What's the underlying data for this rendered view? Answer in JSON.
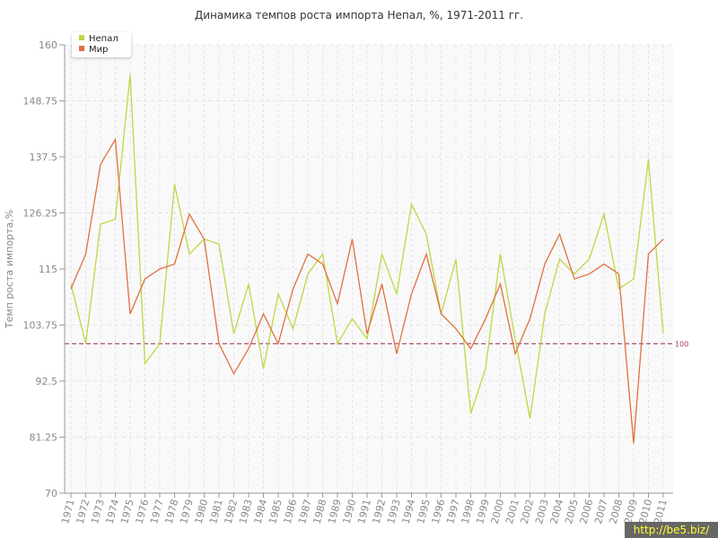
{
  "title": "Динамика темпов роста импорта Непал, %, 1971-2011 гг.",
  "watermark": "http://be5.biz/",
  "colors": {
    "nepal": "#bcd846",
    "world": "#e07040",
    "reference": "#a04060",
    "grid": "#e2e2e2",
    "plot_bg": "#f9f9f9"
  },
  "chart_data": {
    "type": "line",
    "title": "Динамика темпов роста импорта Непал, %, 1971-2011 гг.",
    "xlabel": "",
    "ylabel": "Темп роста импорта,%",
    "ylim": [
      70,
      160
    ],
    "yticks": [
      "70",
      "81.25",
      "92.5",
      "103.75",
      "115",
      "126.25",
      "137.5",
      "148.75",
      "160"
    ],
    "x": [
      "1971",
      "1972",
      "1973",
      "1974",
      "1975",
      "1976",
      "1977",
      "1978",
      "1979",
      "1980",
      "1981",
      "1982",
      "1983",
      "1984",
      "1985",
      "1986",
      "1987",
      "1988",
      "1989",
      "1990",
      "1991",
      "1992",
      "1993",
      "1994",
      "1995",
      "1996",
      "1997",
      "1998",
      "1999",
      "2000",
      "2001",
      "2002",
      "2003",
      "2004",
      "2005",
      "2006",
      "2007",
      "2008",
      "2009",
      "2010",
      "2011"
    ],
    "series": [
      {
        "name": "Непал",
        "values": [
          112,
          100,
          124,
          125,
          154,
          96,
          100,
          132,
          118,
          121,
          120,
          102,
          112,
          95,
          110,
          103,
          114,
          118,
          100,
          105,
          101,
          118,
          110,
          128,
          122,
          106,
          117,
          86,
          95,
          118,
          101,
          85,
          106,
          117,
          114,
          117,
          126,
          111,
          113,
          137,
          102
        ]
      },
      {
        "name": "Мир",
        "values": [
          111,
          118,
          136,
          141,
          106,
          113,
          115,
          116,
          126,
          121,
          100,
          94,
          99,
          106,
          100,
          111,
          118,
          116,
          108,
          121,
          102,
          112,
          98,
          110,
          118,
          106,
          103,
          99,
          105,
          112,
          98,
          105,
          116,
          122,
          113,
          114,
          116,
          114,
          80,
          118,
          121
        ]
      }
    ],
    "reference_line": {
      "value": 100,
      "label": "100"
    },
    "grid": true,
    "legend_placement": "top-left"
  }
}
